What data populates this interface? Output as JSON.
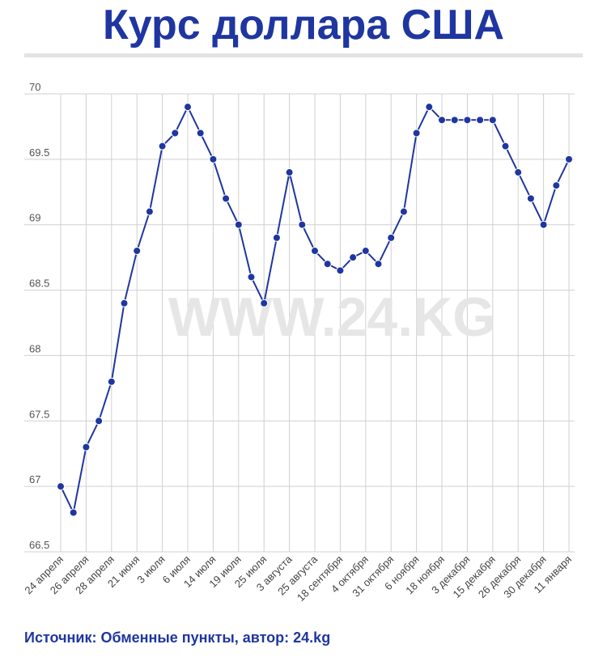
{
  "title": "Курс доллара США",
  "source": "Источник: Обменные пункты, автор: 24.kg",
  "watermark": "WWW.24.KG",
  "colors": {
    "title": "#1f36a0",
    "line": "#1f36a0",
    "grid": "#d0d0d0",
    "divider": "#e3e3e3",
    "watermark": "#e6e6e6"
  },
  "chart_data": {
    "type": "line",
    "title": "Курс доллара США",
    "xlabel": "",
    "ylabel": "",
    "ylim": [
      66.5,
      70
    ],
    "yticks": [
      70,
      69.5,
      69,
      68.5,
      68,
      67.5,
      67,
      66.5
    ],
    "ytick_labels": [
      "70",
      "69.5",
      "69",
      "68.5",
      "68",
      "67.5",
      "67",
      "66.5"
    ],
    "xtick_labels": [
      "24 апреля",
      "26 апреля",
      "28 апреля",
      "21 июня",
      "3 июля",
      "6 июля",
      "14 июля",
      "19 июля",
      "25 июля",
      "3 августа",
      "25 августа",
      "18 сентября",
      "4 октября",
      "31 октября",
      "6 ноября",
      "18 ноября",
      "3 декабря",
      "15 декабря",
      "26 декабря",
      "30 декабря",
      "11 января"
    ],
    "grid": true,
    "legend": "none",
    "series": [
      {
        "values": [
          67.0,
          66.8,
          67.3,
          67.5,
          67.8,
          68.4,
          68.8,
          69.1,
          69.6,
          69.7,
          69.9,
          69.7,
          69.5,
          69.2,
          69.0,
          68.6,
          68.4,
          68.9,
          69.4,
          69.0,
          68.8,
          68.7,
          68.65,
          68.75,
          68.8,
          68.7,
          68.9,
          69.1,
          69.7,
          69.9,
          69.8,
          69.8,
          69.8,
          69.8,
          69.8,
          69.6,
          69.4,
          69.2,
          69.0,
          69.3,
          69.5
        ]
      }
    ]
  }
}
